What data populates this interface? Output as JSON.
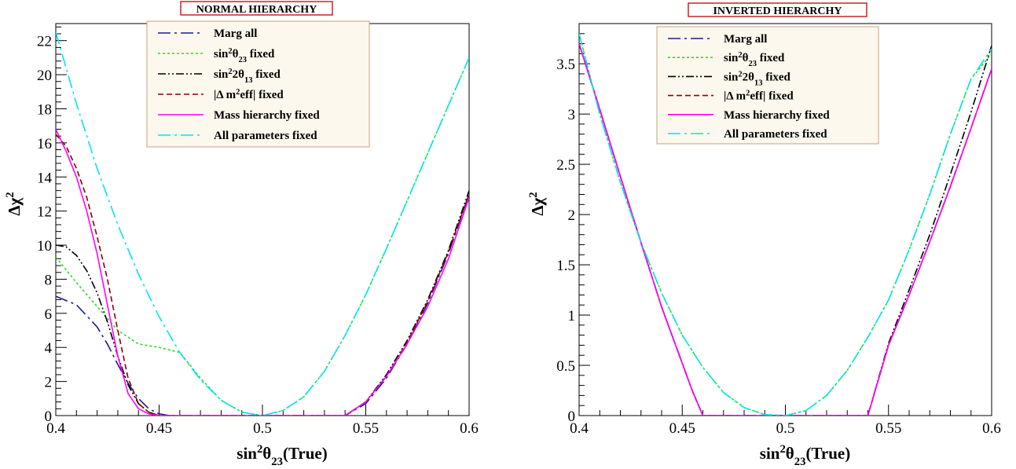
{
  "chart_data": [
    {
      "type": "line",
      "title": "NORMAL HIERARCHY",
      "xlabel": "sin²θ₂₃(True)",
      "ylabel": "Δχ²",
      "xlim": [
        0.4,
        0.6
      ],
      "ylim": [
        0,
        23
      ],
      "x_ticks": [
        0.4,
        0.45,
        0.5,
        0.55,
        0.6
      ],
      "y_ticks": [
        0,
        2,
        4,
        6,
        8,
        10,
        12,
        14,
        16,
        18,
        20,
        22
      ],
      "grid": false,
      "legend_position": "top-center",
      "series": [
        {
          "name": "Marg all",
          "color": "#1a1a99",
          "style": "long-dash-dot",
          "x": [
            0.4,
            0.41,
            0.42,
            0.425,
            0.43,
            0.435,
            0.44,
            0.445,
            0.45,
            0.455,
            0.46,
            0.47,
            0.48,
            0.49,
            0.5,
            0.51,
            0.52,
            0.53,
            0.54,
            0.55,
            0.56,
            0.57,
            0.58,
            0.59,
            0.6
          ],
          "y": [
            7.0,
            6.5,
            5.2,
            4.2,
            3.0,
            1.9,
            1.0,
            0.4,
            0.1,
            0.0,
            0.0,
            0.0,
            0.0,
            0.0,
            0.0,
            0.0,
            0.0,
            0.0,
            0.0,
            0.7,
            2.2,
            4.2,
            6.6,
            9.5,
            13.0
          ]
        },
        {
          "name": "sin²θ₂₃ fixed",
          "color": "#22dd22",
          "style": "dotted",
          "x": [
            0.4,
            0.41,
            0.42,
            0.43,
            0.44,
            0.45,
            0.46,
            0.47,
            0.48,
            0.49,
            0.5,
            0.51,
            0.52,
            0.53,
            0.54,
            0.55,
            0.56,
            0.57,
            0.58,
            0.59,
            0.6
          ],
          "y": [
            9.3,
            7.8,
            6.4,
            5.0,
            4.2,
            4.0,
            3.7,
            2.2,
            0.9,
            0.2,
            0.0,
            0.3,
            1.1,
            2.6,
            4.7,
            7.1,
            9.8,
            12.6,
            15.4,
            18.2,
            21.0
          ]
        },
        {
          "name": "sin²2θ₁₃ fixed",
          "color": "#000000",
          "style": "dash-dot-dot",
          "x": [
            0.4,
            0.405,
            0.41,
            0.415,
            0.42,
            0.425,
            0.43,
            0.435,
            0.44,
            0.445,
            0.45,
            0.455,
            0.46,
            0.47,
            0.48,
            0.49,
            0.5,
            0.51,
            0.52,
            0.53,
            0.54,
            0.55,
            0.56,
            0.57,
            0.58,
            0.59,
            0.6
          ],
          "y": [
            10.0,
            9.9,
            9.4,
            8.5,
            7.2,
            5.5,
            3.5,
            1.8,
            0.7,
            0.2,
            0.0,
            0.0,
            0.0,
            0.0,
            0.0,
            0.0,
            0.0,
            0.0,
            0.0,
            0.0,
            0.0,
            0.8,
            2.4,
            4.4,
            6.8,
            9.7,
            13.2
          ]
        },
        {
          "name": "|Δ m²eff| fixed",
          "color": "#8b0000",
          "style": "dashed",
          "x": [
            0.4,
            0.405,
            0.41,
            0.415,
            0.42,
            0.425,
            0.43,
            0.435,
            0.44,
            0.445,
            0.45,
            0.455,
            0.46,
            0.47,
            0.48,
            0.49,
            0.5,
            0.51,
            0.52,
            0.53,
            0.54,
            0.55,
            0.56,
            0.57,
            0.58,
            0.59,
            0.6
          ],
          "y": [
            16.5,
            15.8,
            14.5,
            12.8,
            10.5,
            8.0,
            5.0,
            2.2,
            0.7,
            0.2,
            0.0,
            0.0,
            0.0,
            0.0,
            0.0,
            0.0,
            0.0,
            0.0,
            0.0,
            0.0,
            0.0,
            0.8,
            2.3,
            4.3,
            6.7,
            9.6,
            13.0
          ]
        },
        {
          "name": "Mass hierarchy fixed",
          "color": "#ff00ff",
          "style": "solid",
          "x": [
            0.4,
            0.405,
            0.41,
            0.415,
            0.42,
            0.425,
            0.43,
            0.435,
            0.44,
            0.445,
            0.45,
            0.455,
            0.46,
            0.47,
            0.48,
            0.49,
            0.5,
            0.51,
            0.52,
            0.53,
            0.54,
            0.55,
            0.56,
            0.57,
            0.58,
            0.59,
            0.6
          ],
          "y": [
            16.8,
            15.5,
            14.0,
            12.0,
            9.5,
            6.5,
            3.5,
            1.3,
            0.4,
            0.1,
            0.0,
            0.0,
            0.0,
            0.0,
            0.0,
            0.0,
            0.0,
            0.0,
            0.0,
            0.0,
            0.0,
            0.8,
            2.3,
            4.2,
            6.4,
            9.2,
            12.8
          ]
        },
        {
          "name": "All parameters fixed",
          "color": "#00e5ee",
          "style": "long-dash-dot",
          "x": [
            0.4,
            0.41,
            0.42,
            0.43,
            0.44,
            0.45,
            0.46,
            0.47,
            0.48,
            0.49,
            0.5,
            0.51,
            0.52,
            0.53,
            0.54,
            0.55,
            0.56,
            0.57,
            0.58,
            0.59,
            0.6
          ],
          "y": [
            22.5,
            18.3,
            14.5,
            11.2,
            8.3,
            5.8,
            3.7,
            2.1,
            0.9,
            0.2,
            0.0,
            0.3,
            1.1,
            2.6,
            4.7,
            7.1,
            9.8,
            12.6,
            15.4,
            18.2,
            21.0
          ]
        }
      ]
    },
    {
      "type": "line",
      "title": "INVERTED HIERARCHY",
      "xlabel": "sin²θ₂₃(True)",
      "ylabel": "Δχ²",
      "xlim": [
        0.4,
        0.6
      ],
      "ylim": [
        0,
        3.9
      ],
      "x_ticks": [
        0.4,
        0.45,
        0.5,
        0.55,
        0.6
      ],
      "y_ticks": [
        0,
        0.5,
        1,
        1.5,
        2,
        2.5,
        3,
        3.5
      ],
      "grid": false,
      "legend_position": "top-center",
      "series": [
        {
          "name": "Marg all",
          "color": "#1a1a99",
          "style": "long-dash-dot",
          "x": [
            0.4,
            0.41,
            0.42,
            0.43,
            0.44,
            0.45,
            0.455,
            0.46,
            0.47,
            0.48,
            0.49,
            0.5,
            0.51,
            0.52,
            0.53,
            0.54,
            0.55,
            0.56,
            0.57,
            0.58,
            0.59,
            0.6
          ],
          "y": [
            3.7,
            3.05,
            2.38,
            1.72,
            1.08,
            0.52,
            0.24,
            0.0,
            0.0,
            0.0,
            0.0,
            0.0,
            0.0,
            0.0,
            0.0,
            0.0,
            0.7,
            1.2,
            1.73,
            2.28,
            2.86,
            3.45
          ]
        },
        {
          "name": "sin²θ₂₃ fixed",
          "color": "#22dd22",
          "style": "dotted",
          "x": [
            0.4,
            0.41,
            0.42,
            0.43,
            0.44,
            0.45,
            0.46,
            0.47,
            0.48,
            0.49,
            0.5,
            0.51,
            0.52,
            0.53,
            0.54,
            0.55,
            0.56,
            0.57,
            0.58,
            0.59,
            0.6
          ],
          "y": [
            3.8,
            3.0,
            2.32,
            1.72,
            1.22,
            0.8,
            0.48,
            0.23,
            0.08,
            0.01,
            0.0,
            0.05,
            0.2,
            0.45,
            0.78,
            1.15,
            1.65,
            2.2,
            2.8,
            3.35,
            3.6
          ]
        },
        {
          "name": "sin²2θ₁₃ fixed",
          "color": "#000000",
          "style": "dash-dot-dot",
          "x": [
            0.4,
            0.41,
            0.42,
            0.43,
            0.44,
            0.45,
            0.455,
            0.46,
            0.47,
            0.48,
            0.49,
            0.5,
            0.51,
            0.52,
            0.53,
            0.54,
            0.55,
            0.56,
            0.57,
            0.58,
            0.59,
            0.6
          ],
          "y": [
            3.7,
            3.05,
            2.38,
            1.72,
            1.08,
            0.52,
            0.24,
            0.0,
            0.0,
            0.0,
            0.0,
            0.0,
            0.0,
            0.0,
            0.0,
            0.0,
            0.72,
            1.25,
            1.8,
            2.4,
            3.02,
            3.68
          ]
        },
        {
          "name": "|Δ m²eff| fixed",
          "color": "#8b0000",
          "style": "dashed",
          "x": [
            0.4,
            0.41,
            0.42,
            0.43,
            0.44,
            0.45,
            0.455,
            0.46,
            0.47,
            0.48,
            0.49,
            0.5,
            0.51,
            0.52,
            0.53,
            0.54,
            0.55,
            0.56,
            0.57,
            0.58,
            0.59,
            0.6
          ],
          "y": [
            3.7,
            3.05,
            2.38,
            1.72,
            1.08,
            0.52,
            0.24,
            0.0,
            0.0,
            0.0,
            0.0,
            0.0,
            0.0,
            0.0,
            0.0,
            0.0,
            0.7,
            1.2,
            1.73,
            2.28,
            2.86,
            3.45
          ]
        },
        {
          "name": "Mass hierarchy fixed",
          "color": "#ff00ff",
          "style": "solid",
          "x": [
            0.4,
            0.41,
            0.42,
            0.43,
            0.44,
            0.45,
            0.455,
            0.46,
            0.47,
            0.48,
            0.49,
            0.5,
            0.51,
            0.52,
            0.53,
            0.54,
            0.55,
            0.56,
            0.57,
            0.58,
            0.59,
            0.6
          ],
          "y": [
            3.7,
            3.05,
            2.38,
            1.72,
            1.08,
            0.52,
            0.24,
            0.0,
            0.0,
            0.0,
            0.0,
            0.0,
            0.0,
            0.0,
            0.0,
            0.0,
            0.7,
            1.2,
            1.73,
            2.28,
            2.86,
            3.45
          ]
        },
        {
          "name": "All parameters fixed",
          "color": "#00e5ee",
          "style": "long-dash-dot",
          "x": [
            0.4,
            0.41,
            0.42,
            0.43,
            0.44,
            0.45,
            0.46,
            0.47,
            0.48,
            0.49,
            0.5,
            0.51,
            0.52,
            0.53,
            0.54,
            0.55,
            0.56,
            0.57,
            0.58,
            0.59,
            0.6
          ],
          "y": [
            3.8,
            3.0,
            2.32,
            1.72,
            1.22,
            0.8,
            0.48,
            0.23,
            0.08,
            0.01,
            0.0,
            0.05,
            0.2,
            0.45,
            0.78,
            1.15,
            1.65,
            2.2,
            2.8,
            3.35,
            3.65
          ]
        }
      ]
    }
  ]
}
